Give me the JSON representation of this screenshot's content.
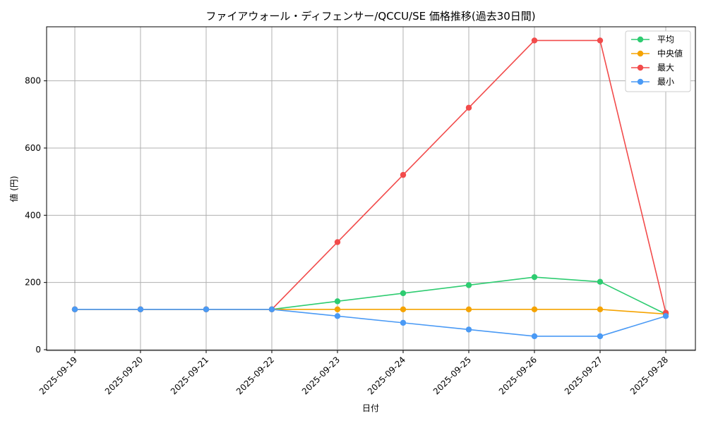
{
  "chart_data": {
    "type": "line",
    "title": "ファイアウォール・ディフェンサー/QCCU/SE 価格推移(過去30日間)",
    "xlabel": "日付",
    "ylabel": "値 (円)",
    "x": [
      "2025-09-19",
      "2025-09-20",
      "2025-09-21",
      "2025-09-22",
      "2025-09-23",
      "2025-09-24",
      "2025-09-25",
      "2025-09-26",
      "2025-09-27",
      "2025-09-28"
    ],
    "ylim": [
      0,
      960
    ],
    "yticks": [
      0,
      200,
      400,
      600,
      800
    ],
    "grid": true,
    "legend_position": "top-right",
    "series": [
      {
        "name": "平均",
        "color": "#2ecc71",
        "values": [
          120,
          120,
          120,
          120,
          144,
          168,
          192,
          216,
          202,
          106
        ]
      },
      {
        "name": "中央値",
        "color": "#f5a300",
        "values": [
          120,
          120,
          120,
          120,
          120,
          120,
          120,
          120,
          120,
          106
        ]
      },
      {
        "name": "最大",
        "color": "#f24b4b",
        "values": [
          120,
          120,
          120,
          120,
          320,
          520,
          720,
          920,
          920,
          110
        ]
      },
      {
        "name": "最小",
        "color": "#4a9af5",
        "values": [
          120,
          120,
          120,
          120,
          100,
          80,
          60,
          40,
          40,
          100
        ]
      }
    ]
  }
}
